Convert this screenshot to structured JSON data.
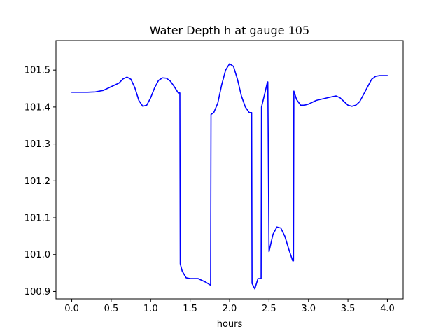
{
  "chart_data": {
    "type": "line",
    "title": "Water Depth h at gauge 105",
    "xlabel": "hours",
    "ylabel": "",
    "xlim": [
      -0.2,
      4.2
    ],
    "ylim": [
      100.88,
      101.58
    ],
    "xticks": [
      0.0,
      0.5,
      1.0,
      1.5,
      2.0,
      2.5,
      3.0,
      3.5,
      4.0
    ],
    "xtick_labels": [
      "0.0",
      "0.5",
      "1.0",
      "1.5",
      "2.0",
      "2.5",
      "3.0",
      "3.5",
      "4.0"
    ],
    "yticks": [
      100.9,
      101.0,
      101.1,
      101.2,
      101.3,
      101.4,
      101.5
    ],
    "ytick_labels": [
      "100.9",
      "101.0",
      "101.1",
      "101.2",
      "101.3",
      "101.4",
      "101.5"
    ],
    "grid": false,
    "legend": "none",
    "series": [
      {
        "color": "#0000ff",
        "x": [
          0.0,
          0.1,
          0.2,
          0.3,
          0.4,
          0.5,
          0.6,
          0.65,
          0.7,
          0.75,
          0.8,
          0.85,
          0.9,
          0.95,
          1.0,
          1.05,
          1.1,
          1.15,
          1.2,
          1.25,
          1.3,
          1.35,
          1.37,
          1.375,
          1.4,
          1.45,
          1.5,
          1.6,
          1.7,
          1.76,
          1.765,
          1.8,
          1.85,
          1.9,
          1.95,
          2.0,
          2.05,
          2.1,
          2.15,
          2.2,
          2.25,
          2.28,
          2.285,
          2.32,
          2.36,
          2.4,
          2.405,
          2.45,
          2.48,
          2.485,
          2.5,
          2.55,
          2.6,
          2.65,
          2.7,
          2.75,
          2.8,
          2.81,
          2.815,
          2.85,
          2.9,
          2.95,
          3.0,
          3.05,
          3.1,
          3.2,
          3.3,
          3.35,
          3.4,
          3.45,
          3.5,
          3.55,
          3.6,
          3.65,
          3.7,
          3.75,
          3.8,
          3.85,
          3.9,
          3.95,
          4.0
        ],
        "y": [
          101.44,
          101.44,
          101.44,
          101.441,
          101.445,
          101.455,
          101.465,
          101.476,
          101.481,
          101.475,
          101.452,
          101.418,
          101.402,
          101.405,
          101.425,
          101.452,
          101.472,
          101.479,
          101.478,
          101.47,
          101.455,
          101.438,
          101.438,
          100.975,
          100.955,
          100.937,
          100.935,
          100.935,
          100.925,
          100.917,
          101.38,
          101.385,
          101.41,
          101.46,
          101.5,
          101.517,
          101.51,
          101.475,
          101.43,
          101.4,
          101.385,
          101.385,
          100.922,
          100.907,
          100.935,
          100.935,
          101.4,
          101.44,
          101.468,
          101.468,
          101.008,
          101.055,
          101.075,
          101.072,
          101.05,
          101.015,
          100.983,
          100.983,
          101.443,
          101.42,
          101.405,
          101.405,
          101.408,
          101.413,
          101.418,
          101.423,
          101.428,
          101.43,
          101.425,
          101.415,
          101.405,
          101.402,
          101.405,
          101.415,
          101.435,
          101.455,
          101.475,
          101.483,
          101.485,
          101.485,
          101.485
        ]
      }
    ]
  }
}
